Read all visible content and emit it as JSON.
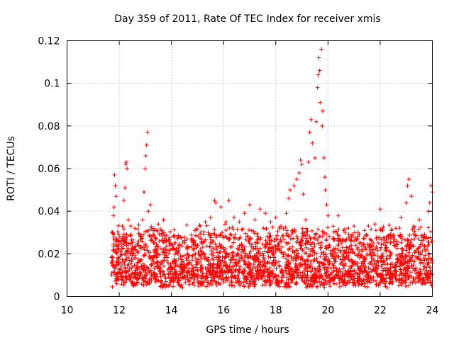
{
  "chart_data": {
    "type": "scatter",
    "title": "Day 359 of 2011, Rate Of TEC Index for receiver xmis",
    "xlabel": "GPS time / hours",
    "ylabel": "ROTI / TECUs",
    "xlim": [
      10,
      24
    ],
    "ylim": [
      0,
      0.12
    ],
    "xticks": [
      10,
      12,
      14,
      16,
      18,
      20,
      22,
      24
    ],
    "xtick_labels": [
      "10",
      "12",
      "14",
      "16",
      "18",
      "20",
      "22",
      "24"
    ],
    "yticks": [
      0,
      0.02,
      0.04,
      0.06,
      0.08,
      0.1,
      0.12
    ],
    "ytick_labels": [
      "0",
      "0.02",
      "0.04",
      "0.06",
      "0.08",
      "0.1",
      "0.12"
    ],
    "grid": true,
    "marker": "+",
    "color": "#ff0000",
    "series": [
      {
        "name": "ROTI",
        "points": [
          [
            11.72,
            0.016
          ],
          [
            11.75,
            0.03
          ],
          [
            11.78,
            0.038
          ],
          [
            11.8,
            0.042
          ],
          [
            11.82,
            0.057
          ],
          [
            11.85,
            0.052
          ],
          [
            11.88,
            0.047
          ],
          [
            11.9,
            0.024
          ],
          [
            11.95,
            0.018
          ],
          [
            12.0,
            0.028
          ],
          [
            12.05,
            0.021
          ],
          [
            12.12,
            0.033
          ],
          [
            12.18,
            0.045
          ],
          [
            12.22,
            0.051
          ],
          [
            12.25,
            0.062
          ],
          [
            12.27,
            0.063
          ],
          [
            12.3,
            0.06
          ],
          [
            12.35,
            0.036
          ],
          [
            12.45,
            0.029
          ],
          [
            12.6,
            0.032
          ],
          [
            12.7,
            0.025
          ],
          [
            12.8,
            0.028
          ],
          [
            12.9,
            0.036
          ],
          [
            12.95,
            0.049
          ],
          [
            13.0,
            0.06
          ],
          [
            13.02,
            0.066
          ],
          [
            13.05,
            0.071
          ],
          [
            13.08,
            0.077
          ],
          [
            13.12,
            0.04
          ],
          [
            13.2,
            0.043
          ],
          [
            13.3,
            0.029
          ],
          [
            13.5,
            0.034
          ],
          [
            13.7,
            0.036
          ],
          [
            13.9,
            0.026
          ],
          [
            14.1,
            0.028
          ],
          [
            14.3,
            0.024
          ],
          [
            14.6,
            0.027
          ],
          [
            14.9,
            0.031
          ],
          [
            15.1,
            0.033
          ],
          [
            15.3,
            0.035
          ],
          [
            15.5,
            0.037
          ],
          [
            15.65,
            0.045
          ],
          [
            15.7,
            0.044
          ],
          [
            15.9,
            0.042
          ],
          [
            16.1,
            0.035
          ],
          [
            16.2,
            0.045
          ],
          [
            16.4,
            0.037
          ],
          [
            16.6,
            0.035
          ],
          [
            16.8,
            0.039
          ],
          [
            17.0,
            0.043
          ],
          [
            17.2,
            0.036
          ],
          [
            17.4,
            0.041
          ],
          [
            17.6,
            0.039
          ],
          [
            17.8,
            0.035
          ],
          [
            18.0,
            0.037
          ],
          [
            18.2,
            0.033
          ],
          [
            18.4,
            0.039
          ],
          [
            18.5,
            0.046
          ],
          [
            18.55,
            0.05
          ],
          [
            18.7,
            0.052
          ],
          [
            18.8,
            0.055
          ],
          [
            18.9,
            0.058
          ],
          [
            18.95,
            0.064
          ],
          [
            19.0,
            0.062
          ],
          [
            19.05,
            0.048
          ],
          [
            19.15,
            0.036
          ],
          [
            19.25,
            0.063
          ],
          [
            19.3,
            0.077
          ],
          [
            19.35,
            0.083
          ],
          [
            19.4,
            0.072
          ],
          [
            19.5,
            0.065
          ],
          [
            19.55,
            0.082
          ],
          [
            19.6,
            0.098
          ],
          [
            19.62,
            0.104
          ],
          [
            19.65,
            0.112
          ],
          [
            19.68,
            0.106
          ],
          [
            19.7,
            0.091
          ],
          [
            19.75,
            0.116
          ],
          [
            19.78,
            0.08
          ],
          [
            19.8,
            0.087
          ],
          [
            19.85,
            0.065
          ],
          [
            19.88,
            0.056
          ],
          [
            19.9,
            0.05
          ],
          [
            19.95,
            0.043
          ],
          [
            20.0,
            0.038
          ],
          [
            20.2,
            0.033
          ],
          [
            20.4,
            0.038
          ],
          [
            20.6,
            0.031
          ],
          [
            20.8,
            0.028
          ],
          [
            21.0,
            0.033
          ],
          [
            21.2,
            0.029
          ],
          [
            21.4,
            0.031
          ],
          [
            21.6,
            0.027
          ],
          [
            21.8,
            0.034
          ],
          [
            22.0,
            0.041
          ],
          [
            22.2,
            0.024
          ],
          [
            22.4,
            0.029
          ],
          [
            22.6,
            0.032
          ],
          [
            22.8,
            0.037
          ],
          [
            23.0,
            0.044
          ],
          [
            23.05,
            0.052
          ],
          [
            23.1,
            0.055
          ],
          [
            23.2,
            0.047
          ],
          [
            23.3,
            0.033
          ],
          [
            23.5,
            0.036
          ],
          [
            23.7,
            0.029
          ],
          [
            23.85,
            0.04
          ],
          [
            23.9,
            0.044
          ],
          [
            23.95,
            0.052
          ],
          [
            24.0,
            0.049
          ]
        ]
      }
    ],
    "density_note_bands": [
      {
        "x_range": [
          11.7,
          24.0
        ],
        "y_range": [
          0.004,
          0.028
        ],
        "description": "dense cluster of + markers"
      }
    ]
  }
}
